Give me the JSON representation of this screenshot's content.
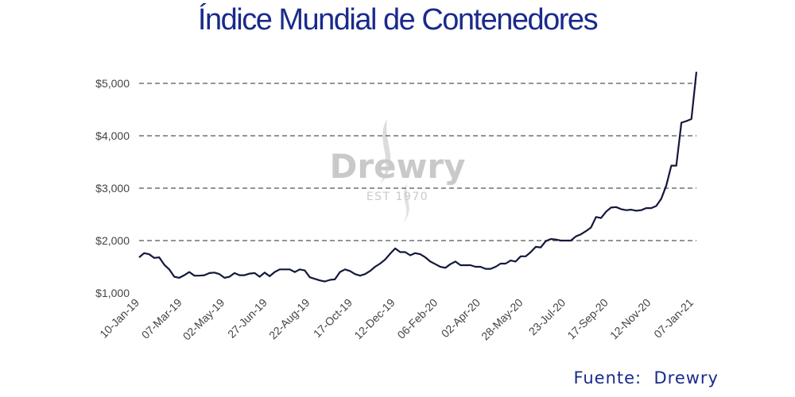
{
  "title": "Índice Mundial de Contenedores",
  "source": "Fuente:  Drewry",
  "watermark": {
    "brand": "Drewry",
    "est": "EST 1970"
  },
  "chart_data": {
    "type": "line",
    "title": "Índice Mundial de Contenedores",
    "xlabel": "",
    "ylabel": "",
    "ylim": [
      1000,
      5200
    ],
    "y_ticks": [
      1000,
      2000,
      3000,
      4000,
      5000
    ],
    "y_tick_labels": [
      "$1,000",
      "$2,000",
      "$3,000",
      "$4,000",
      "$5,000"
    ],
    "grid": "horizontal-dashed",
    "x_tick_labels": [
      "10-Jan-19",
      "07-Mar-19",
      "02-May-19",
      "27-Jun-19",
      "22-Aug-19",
      "17-Oct-19",
      "12-Dec-19",
      "06-Feb-20",
      "02-Apr-20",
      "28-May-20",
      "23-Jul-20",
      "17-Sep-20",
      "12-Nov-20",
      "07-Jan-21"
    ],
    "series": [
      {
        "color": "#14183c",
        "values": [
          1680,
          1760,
          1740,
          1670,
          1680,
          1540,
          1450,
          1310,
          1290,
          1340,
          1400,
          1330,
          1330,
          1340,
          1380,
          1390,
          1360,
          1290,
          1310,
          1380,
          1340,
          1340,
          1370,
          1380,
          1310,
          1390,
          1320,
          1400,
          1450,
          1450,
          1450,
          1400,
          1450,
          1430,
          1300,
          1270,
          1240,
          1220,
          1250,
          1260,
          1400,
          1450,
          1420,
          1360,
          1330,
          1360,
          1420,
          1500,
          1560,
          1640,
          1750,
          1850,
          1780,
          1780,
          1720,
          1760,
          1740,
          1680,
          1600,
          1550,
          1500,
          1480,
          1550,
          1600,
          1530,
          1530,
          1530,
          1500,
          1500,
          1460,
          1460,
          1500,
          1560,
          1560,
          1620,
          1600,
          1700,
          1700,
          1780,
          1880,
          1870,
          1990,
          2030,
          2020,
          2000,
          2000,
          2000,
          2080,
          2120,
          2180,
          2250,
          2450,
          2430,
          2550,
          2630,
          2640,
          2600,
          2580,
          2590,
          2570,
          2580,
          2620,
          2620,
          2660,
          2800,
          3050,
          3430,
          3430,
          4250,
          4280,
          4320,
          5220
        ]
      }
    ]
  }
}
